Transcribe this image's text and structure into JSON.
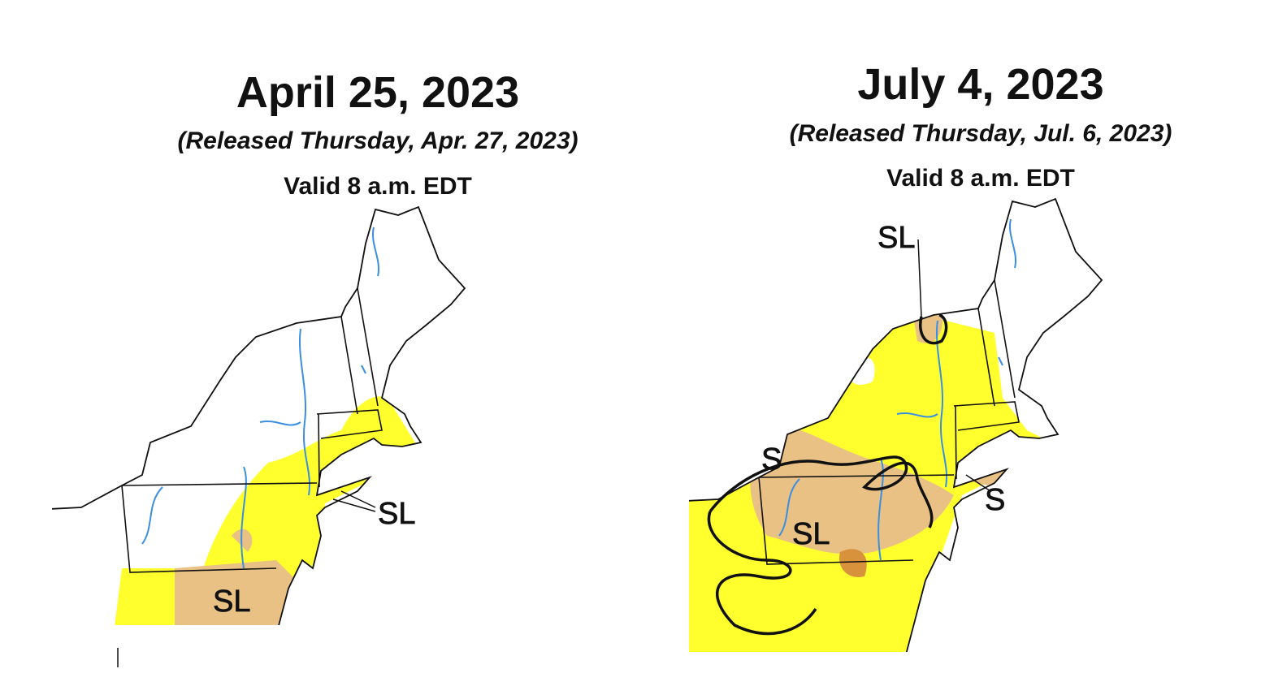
{
  "panels": [
    {
      "title": "April 25, 2023",
      "released": "(Released Thursday, Apr. 27, 2023)",
      "valid": "Valid 8 a.m. EDT",
      "labels": [
        "SL",
        "SL"
      ]
    },
    {
      "title": "July 4, 2023",
      "released": "(Released Thursday, Jul. 6, 2023)",
      "valid": "Valid 8 a.m. EDT",
      "labels": [
        "SL",
        "S",
        "SL",
        "S"
      ]
    }
  ]
}
